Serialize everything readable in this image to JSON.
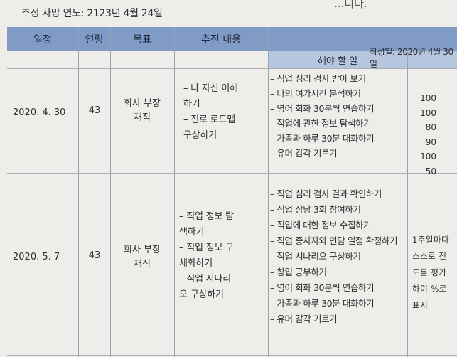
{
  "header_text": {
    "death_year": "추정 사망 연도: 2123년 4월 24일",
    "top_fragment": "...니다.",
    "written_date": "작성일: 2020년 4월 30일"
  },
  "table": {
    "columns": [
      "일정",
      "연령",
      "목표",
      "추진 내용",
      "해야 할 일",
      ""
    ],
    "rows": [
      {
        "date": "2020. 4. 30",
        "age": "43",
        "goal": "회사 부장\n재직",
        "plans": [
          "– 나 자신 이해\n하기",
          "– 진로 로드맵\n구상하기"
        ],
        "tasks": [
          "– 직업 심리 검사 받아 보기",
          "– 나의 여가시간 분석하기",
          "– 영어 회화 30분씩 연습하기",
          "– 직업에 관한 정보 탐색하기",
          "– 가족과 하루 30분 대화하기",
          "– 유머 감각 기르기"
        ],
        "scores": [
          "100",
          "100",
          "80",
          "90",
          "100",
          "50"
        ]
      },
      {
        "date": "2020. 5. 7",
        "age": "43",
        "goal": "회사 부장\n재직",
        "plans": [
          "– 직업 정보 탐\n색하기",
          "– 직업 정보 구\n체화하기",
          "– 직업 시나리\n오 구상하기"
        ],
        "tasks": [
          "– 직업 심리 검사 결과 확인하기",
          "– 직업 상담 3회 참여하기",
          "– 직업에 대한 정보 수집하기",
          "– 직업 종사자와 면담 일정 확정하기",
          "– 직업 시나리오 구상하기",
          "– 창업 공부하기",
          "– 영어 회화 30분씩 연습하기",
          "– 가족과 하루 30분 대화하기",
          "– 유머 감각 기르기"
        ],
        "evaluation": "1주일마다\n스스로 진\n도를 평가\n하여 %로\n표시"
      }
    ]
  }
}
